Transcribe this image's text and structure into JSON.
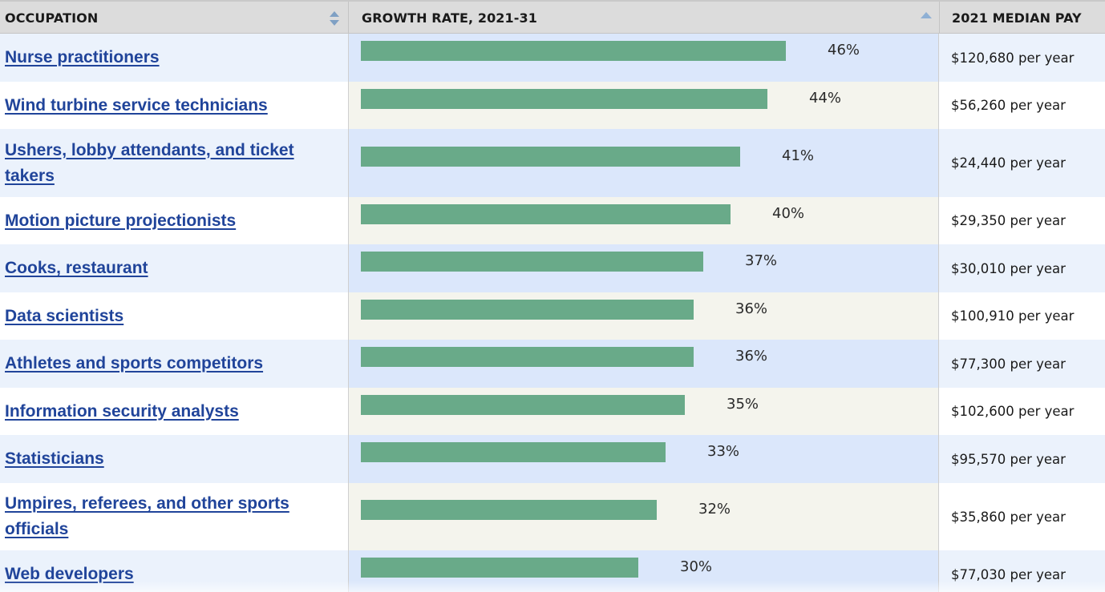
{
  "table": {
    "headers": {
      "occupation": "OCCUPATION",
      "growth_rate": "GROWTH RATE, 2021-31",
      "median_pay": "2021 MEDIAN PAY"
    },
    "sort": {
      "occupation": "sortable",
      "growth_rate": "sorted-descending"
    },
    "colors": {
      "bar": "#69aa89",
      "link": "#20449a",
      "header_bg": "#dcdcdc",
      "row_alt_bg": "#ebf2fc",
      "growth_alt_bg": "#dbe7fb",
      "growth_bg": "#f4f4ed"
    },
    "rows": [
      {
        "occupation": "Nurse practitioners",
        "growth_label": "46%",
        "growth_value": 46,
        "pay": "$120,680 per year"
      },
      {
        "occupation": "Wind turbine service technicians",
        "growth_label": "44%",
        "growth_value": 44,
        "pay": "$56,260 per year"
      },
      {
        "occupation": "Ushers, lobby attendants, and ticket takers",
        "growth_label": "41%",
        "growth_value": 41,
        "pay": "$24,440 per year"
      },
      {
        "occupation": "Motion picture projectionists",
        "growth_label": "40%",
        "growth_value": 40,
        "pay": "$29,350 per year"
      },
      {
        "occupation": "Cooks, restaurant",
        "growth_label": "37%",
        "growth_value": 37,
        "pay": "$30,010 per year"
      },
      {
        "occupation": "Data scientists",
        "growth_label": "36%",
        "growth_value": 36,
        "pay": "$100,910 per year"
      },
      {
        "occupation": "Athletes and sports competitors",
        "growth_label": "36%",
        "growth_value": 36,
        "pay": "$77,300 per year"
      },
      {
        "occupation": "Information security analysts",
        "growth_label": "35%",
        "growth_value": 35,
        "pay": "$102,600 per year"
      },
      {
        "occupation": "Statisticians",
        "growth_label": "33%",
        "growth_value": 33,
        "pay": "$95,570 per year"
      },
      {
        "occupation": "Umpires, referees, and other sports officials",
        "growth_label": "32%",
        "growth_value": 32,
        "pay": "$35,860 per year"
      },
      {
        "occupation": "Web developers",
        "growth_label": "30%",
        "growth_value": 30,
        "pay": "$77,030 per year"
      }
    ]
  }
}
